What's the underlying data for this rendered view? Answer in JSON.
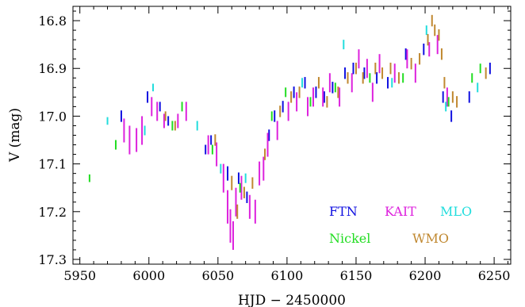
{
  "chart_data": {
    "type": "scatter",
    "title": "",
    "xlabel": "HJD − 2450000",
    "ylabel": "V (mag)",
    "xlim": [
      5945,
      6262
    ],
    "ylim": [
      17.31,
      16.77
    ],
    "y_inverted": true,
    "grid": false,
    "legend_placement": "bottom-right",
    "x_ticks": [
      5950,
      6000,
      6050,
      6100,
      6150,
      6200,
      6250
    ],
    "y_ticks": [
      16.8,
      16.9,
      17.0,
      17.1,
      17.2,
      17.3
    ],
    "x_tick_labels": [
      "5950",
      "6000",
      "6050",
      "6100",
      "6150",
      "6200",
      "6250"
    ],
    "y_tick_labels": [
      "16.8",
      "16.9",
      "17.0",
      "17.1",
      "17.2",
      "17.3"
    ],
    "series": [
      {
        "name": "FTN",
        "color": "#1010e0",
        "points": [
          [
            5980,
            17.0,
            0.012
          ],
          [
            5999,
            16.96,
            0.012
          ],
          [
            6008,
            16.98,
            0.01
          ],
          [
            6014,
            17.01,
            0.01
          ],
          [
            6041,
            17.07,
            0.01
          ],
          [
            6045,
            17.05,
            0.01
          ],
          [
            6057,
            17.12,
            0.015
          ],
          [
            6065,
            17.13,
            0.012
          ],
          [
            6071,
            17.17,
            0.012
          ],
          [
            6087,
            17.04,
            0.012
          ],
          [
            6091,
            17.0,
            0.012
          ],
          [
            6097,
            16.98,
            0.012
          ],
          [
            6105,
            16.95,
            0.012
          ],
          [
            6113,
            16.93,
            0.012
          ],
          [
            6121,
            16.95,
            0.012
          ],
          [
            6127,
            16.96,
            0.012
          ],
          [
            6133,
            16.94,
            0.012
          ],
          [
            6142,
            16.91,
            0.012
          ],
          [
            6148,
            16.9,
            0.012
          ],
          [
            6156,
            16.91,
            0.012
          ],
          [
            6165,
            16.92,
            0.012
          ],
          [
            6173,
            16.93,
            0.012
          ],
          [
            6186,
            16.87,
            0.012
          ],
          [
            6199,
            16.86,
            0.012
          ],
          [
            6213,
            16.96,
            0.012
          ],
          [
            6219,
            17.0,
            0.012
          ],
          [
            6232,
            16.96,
            0.012
          ],
          [
            6247,
            16.9,
            0.012
          ]
        ]
      },
      {
        "name": "KAIT",
        "color": "#dd22dd",
        "points": [
          [
            5982,
            17.03,
            0.025
          ],
          [
            5986,
            17.05,
            0.03
          ],
          [
            5991,
            17.05,
            0.025
          ],
          [
            5995,
            17.03,
            0.03
          ],
          [
            6002,
            16.98,
            0.02
          ],
          [
            6006,
            16.99,
            0.02
          ],
          [
            6011,
            17.01,
            0.015
          ],
          [
            6021,
            17.01,
            0.015
          ],
          [
            6027,
            16.99,
            0.02
          ],
          [
            6043,
            17.06,
            0.02
          ],
          [
            6049,
            17.08,
            0.025
          ],
          [
            6054,
            17.13,
            0.03
          ],
          [
            6057,
            17.19,
            0.035
          ],
          [
            6059,
            17.23,
            0.035
          ],
          [
            6061,
            17.25,
            0.03
          ],
          [
            6063,
            17.18,
            0.03
          ],
          [
            6067,
            17.15,
            0.025
          ],
          [
            6073,
            17.19,
            0.025
          ],
          [
            6077,
            17.2,
            0.025
          ],
          [
            6080,
            17.12,
            0.025
          ],
          [
            6083,
            17.11,
            0.025
          ],
          [
            6086,
            17.06,
            0.025
          ],
          [
            6093,
            17.03,
            0.02
          ],
          [
            6101,
            16.99,
            0.02
          ],
          [
            6107,
            16.97,
            0.02
          ],
          [
            6115,
            16.98,
            0.02
          ],
          [
            6119,
            16.96,
            0.02
          ],
          [
            6126,
            16.96,
            0.02
          ],
          [
            6131,
            16.93,
            0.02
          ],
          [
            6138,
            16.96,
            0.02
          ],
          [
            6147,
            16.93,
            0.02
          ],
          [
            6152,
            16.88,
            0.02
          ],
          [
            6158,
            16.9,
            0.02
          ],
          [
            6162,
            16.95,
            0.02
          ],
          [
            6167,
            16.89,
            0.02
          ],
          [
            6178,
            16.91,
            0.02
          ],
          [
            6187,
            16.88,
            0.02
          ],
          [
            6193,
            16.91,
            0.02
          ],
          [
            6203,
            16.86,
            0.015
          ],
          [
            6209,
            16.85,
            0.02
          ],
          [
            6216,
            16.96,
            0.02
          ]
        ]
      },
      {
        "name": "MLO",
        "color": "#22dddd",
        "points": [
          [
            5970,
            17.01,
            0.008
          ],
          [
            5997,
            17.03,
            0.01
          ],
          [
            6003,
            16.94,
            0.008
          ],
          [
            6035,
            17.02,
            0.01
          ],
          [
            6052,
            17.11,
            0.01
          ],
          [
            6070,
            17.13,
            0.01
          ],
          [
            6111,
            16.93,
            0.01
          ],
          [
            6141,
            16.85,
            0.01
          ],
          [
            6176,
            16.93,
            0.01
          ],
          [
            6201,
            16.82,
            0.01
          ],
          [
            6215,
            16.98,
            0.01
          ],
          [
            6238,
            16.94,
            0.01
          ]
        ]
      },
      {
        "name": "Nickel",
        "color": "#22dd22",
        "points": [
          [
            5957,
            17.13,
            0.008
          ],
          [
            5976,
            17.06,
            0.01
          ],
          [
            6017,
            17.02,
            0.01
          ],
          [
            6024,
            16.98,
            0.01
          ],
          [
            6046,
            17.07,
            0.01
          ],
          [
            6066,
            17.15,
            0.01
          ],
          [
            6089,
            17.0,
            0.01
          ],
          [
            6099,
            16.95,
            0.01
          ],
          [
            6117,
            16.97,
            0.01
          ],
          [
            6135,
            16.94,
            0.01
          ],
          [
            6160,
            16.92,
            0.01
          ],
          [
            6184,
            16.92,
            0.01
          ],
          [
            6217,
            16.97,
            0.01
          ],
          [
            6234,
            16.92,
            0.01
          ],
          [
            6240,
            16.9,
            0.01
          ]
        ]
      },
      {
        "name": "WMO",
        "color": "#c08830",
        "points": [
          [
            6012,
            17.0,
            0.01
          ],
          [
            6019,
            17.02,
            0.01
          ],
          [
            6048,
            17.05,
            0.012
          ],
          [
            6060,
            17.14,
            0.015
          ],
          [
            6064,
            17.2,
            0.015
          ],
          [
            6069,
            17.16,
            0.012
          ],
          [
            6075,
            17.14,
            0.012
          ],
          [
            6084,
            17.08,
            0.012
          ],
          [
            6095,
            16.99,
            0.012
          ],
          [
            6103,
            16.96,
            0.012
          ],
          [
            6109,
            16.95,
            0.012
          ],
          [
            6123,
            16.93,
            0.012
          ],
          [
            6129,
            16.97,
            0.012
          ],
          [
            6137,
            16.95,
            0.012
          ],
          [
            6144,
            16.92,
            0.012
          ],
          [
            6150,
            16.9,
            0.012
          ],
          [
            6155,
            16.92,
            0.012
          ],
          [
            6164,
            16.9,
            0.012
          ],
          [
            6169,
            16.91,
            0.012
          ],
          [
            6175,
            16.9,
            0.012
          ],
          [
            6181,
            16.92,
            0.012
          ],
          [
            6190,
            16.89,
            0.012
          ],
          [
            6196,
            16.88,
            0.012
          ],
          [
            6202,
            16.84,
            0.012
          ],
          [
            6205,
            16.8,
            0.012
          ],
          [
            6207,
            16.82,
            0.012
          ],
          [
            6210,
            16.83,
            0.012
          ],
          [
            6212,
            16.87,
            0.012
          ],
          [
            6214,
            16.93,
            0.012
          ],
          [
            6220,
            16.96,
            0.012
          ],
          [
            6223,
            16.97,
            0.012
          ],
          [
            6244,
            16.91,
            0.012
          ]
        ]
      }
    ]
  }
}
